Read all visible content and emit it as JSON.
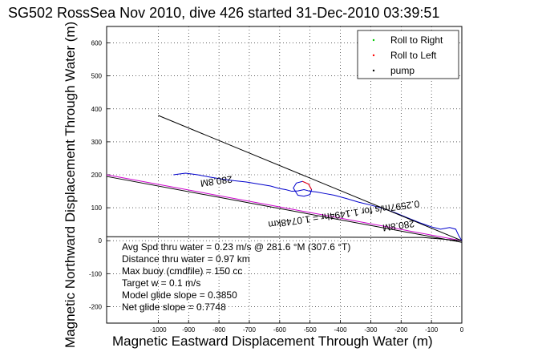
{
  "chart_data": {
    "type": "line",
    "title": "SG502 RossSea Nov 2010, dive 426 started 31-Dec-2010 03:39:51",
    "xlabel": "Magnetic Eastward Displacement Through Water (m)",
    "ylabel": "Magnetic Northward Displacement Through Water (m)",
    "xlim": [
      -1170,
      0
    ],
    "ylim": [
      -250,
      650
    ],
    "xticks": [
      -1000,
      -900,
      -800,
      -700,
      -600,
      -500,
      -400,
      -300,
      -200,
      -100,
      0
    ],
    "yticks": [
      -200,
      -100,
      0,
      100,
      200,
      300,
      400,
      500,
      600
    ],
    "grid": true,
    "legend_position": "top-right",
    "legend": [
      {
        "name": "Roll to Right",
        "color": "#00cc00"
      },
      {
        "name": "Roll to Left",
        "color": "#ff0000"
      },
      {
        "name": "pump",
        "color": "#000000"
      }
    ],
    "series": [
      {
        "label": "track",
        "color": "#0000cc",
        "x": [
          -950,
          -910,
          -870,
          -830,
          -790,
          -750,
          -710,
          -670,
          -630,
          -600,
          -580,
          -560,
          -540,
          -520,
          -500,
          -480,
          -450,
          -420,
          -380,
          -340,
          -300,
          -260,
          -220,
          -180,
          -140,
          -100,
          -70,
          -40,
          -20,
          -10,
          0
        ],
        "y": [
          200,
          205,
          200,
          193,
          187,
          182,
          178,
          172,
          166,
          158,
          155,
          150,
          151,
          155,
          150,
          148,
          143,
          138,
          128,
          117,
          108,
          98,
          85,
          70,
          55,
          42,
          35,
          40,
          35,
          15,
          0
        ]
      },
      {
        "label": "loop",
        "color": "#0000cc",
        "x": [
          -545,
          -555,
          -545,
          -525,
          -505,
          -495,
          -500,
          -520,
          -540,
          -545
        ],
        "y": [
          145,
          160,
          175,
          180,
          172,
          155,
          140,
          135,
          138,
          145
        ]
      },
      {
        "label": "loop-left",
        "color": "#ff0000",
        "x": [
          -525,
          -505,
          -495
        ],
        "y": [
          180,
          172,
          155
        ]
      },
      {
        "label": "heading-line",
        "color": "#000000",
        "x": [
          -1000,
          0
        ],
        "y": [
          380,
          0
        ]
      },
      {
        "label": "current-line",
        "color": "#cc00cc",
        "x": [
          -1170,
          0
        ],
        "y": [
          200,
          0
        ]
      },
      {
        "label": "current-line-2",
        "color": "#000000",
        "x": [
          -1170,
          0
        ],
        "y": [
          195,
          -5
        ]
      },
      {
        "label": "baseline",
        "color": "#000000",
        "x": [
          -1170,
          -130,
          0
        ],
        "y": [
          12,
          10,
          0
        ]
      }
    ],
    "annotations": [
      {
        "text": "280.8M",
        "x": -810,
        "y": 190,
        "angle": 172
      },
      {
        "text": "0.2597m/s for 1.1494hr = 1.0748km",
        "x": -390,
        "y": 90,
        "angle": 172
      },
      {
        "text": "280.8M",
        "x": -210,
        "y": 55,
        "angle": 172
      }
    ],
    "notes": [
      "Avg Spd thru water =  0.23 m/s @ 281.6   °M (307.6 °T)",
      "Distance thru water =  0.97 km",
      "Max buoy (cmdfile) = 150 cc",
      "Target w = 0.1 m/s",
      "Model glide slope = 0.3850",
      "Net glide slope = 0.7748"
    ]
  }
}
